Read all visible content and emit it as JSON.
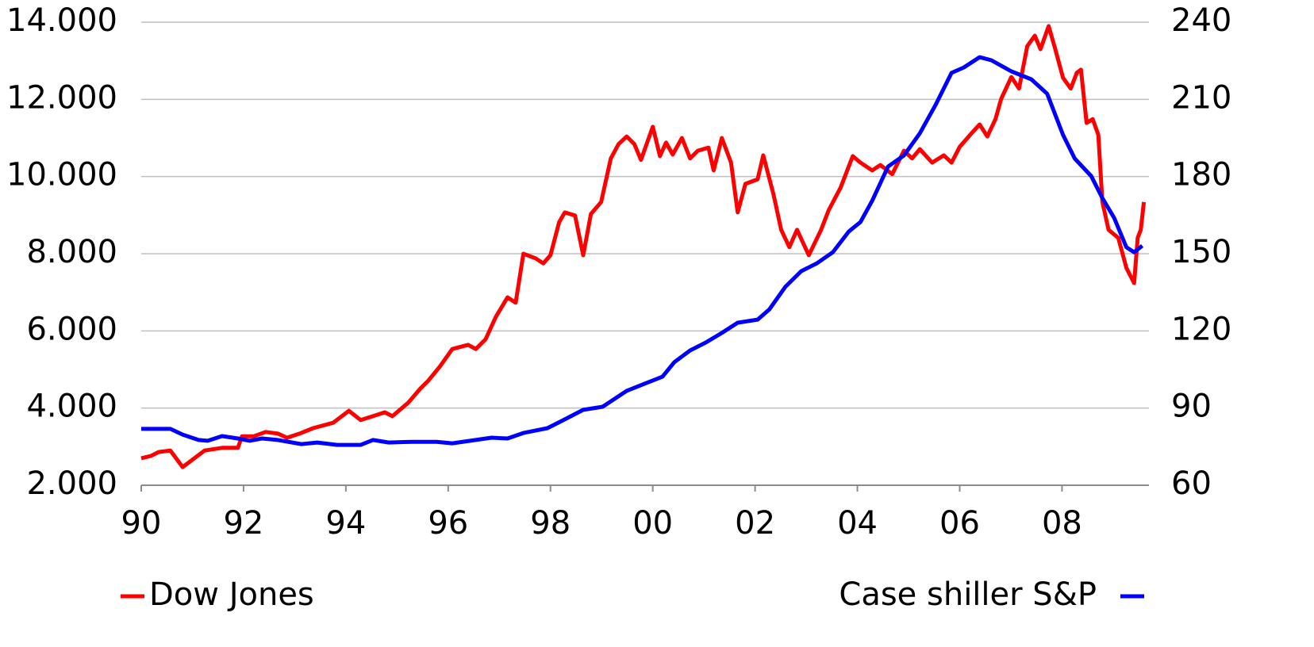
{
  "chart_data": {
    "type": "line",
    "xlim": [
      1990,
      2009.7
    ],
    "xticks": [
      {
        "value": 1990,
        "label": "90"
      },
      {
        "value": 1992,
        "label": "92"
      },
      {
        "value": 1994,
        "label": "94"
      },
      {
        "value": 1996,
        "label": "96"
      },
      {
        "value": 1998,
        "label": "98"
      },
      {
        "value": 2000,
        "label": "00"
      },
      {
        "value": 2002,
        "label": "02"
      },
      {
        "value": 2004,
        "label": "04"
      },
      {
        "value": 2006,
        "label": "06"
      },
      {
        "value": 2008,
        "label": "08"
      }
    ],
    "ylim": [
      2000,
      14000
    ],
    "yticks": [
      {
        "value": 2000,
        "label": "2.000"
      },
      {
        "value": 4000,
        "label": "4.000"
      },
      {
        "value": 6000,
        "label": "6.000"
      },
      {
        "value": 8000,
        "label": "8.000"
      },
      {
        "value": 10000,
        "label": "10.000"
      },
      {
        "value": 12000,
        "label": "12.000"
      },
      {
        "value": 14000,
        "label": "14.000"
      }
    ],
    "y2lim": [
      60,
      240
    ],
    "y2ticks": [
      60,
      90,
      120,
      150,
      180,
      210,
      240
    ],
    "grid": true,
    "legend": "bottom",
    "series": [
      {
        "name": "Dow Jones",
        "color": "#ff0000",
        "x": [
          1990.0,
          1990.19,
          1990.34,
          1990.57,
          1990.81,
          1990.96,
          1991.24,
          1991.58,
          1991.89,
          1991.97,
          1992.2,
          1992.43,
          1992.67,
          1992.85,
          1993.1,
          1993.36,
          1993.75,
          1994.06,
          1994.29,
          1994.53,
          1994.76,
          1994.91,
          1995.22,
          1995.46,
          1995.61,
          1995.84,
          1996.08,
          1996.39,
          1996.54,
          1996.73,
          1996.93,
          1997.16,
          1997.32,
          1997.47,
          1997.71,
          1997.86,
          1998.0,
          1998.17,
          1998.28,
          1998.48,
          1998.64,
          1998.79,
          1998.99,
          1999.18,
          1999.33,
          1999.49,
          1999.64,
          1999.77,
          2000.0,
          2000.14,
          2000.26,
          2000.39,
          2000.57,
          2000.73,
          2000.88,
          2001.09,
          2001.19,
          2001.35,
          2001.53,
          2001.66,
          2001.81,
          2002.05,
          2002.16,
          2002.36,
          2002.51,
          2002.67,
          2002.82,
          2003.05,
          2003.29,
          2003.44,
          2003.67,
          2003.91,
          2004.06,
          2004.29,
          2004.45,
          2004.68,
          2004.91,
          2005.07,
          2005.22,
          2005.46,
          2005.69,
          2005.84,
          2006.0,
          2006.23,
          2006.39,
          2006.54,
          2006.7,
          2006.81,
          2007.01,
          2007.16,
          2007.32,
          2007.47,
          2007.58,
          2007.74,
          2007.86,
          2008.02,
          2008.17,
          2008.29,
          2008.37,
          2008.48,
          2008.6,
          2008.71,
          2008.79,
          2008.91,
          2009.1,
          2009.26,
          2009.41,
          2009.48,
          2009.54,
          2009.6
        ],
        "values": [
          2700,
          2760,
          2860,
          2900,
          2470,
          2620,
          2900,
          2970,
          2970,
          3270,
          3270,
          3380,
          3340,
          3230,
          3340,
          3480,
          3620,
          3930,
          3690,
          3790,
          3890,
          3790,
          4140,
          4510,
          4710,
          5080,
          5530,
          5640,
          5530,
          5780,
          6360,
          6870,
          6730,
          8000,
          7880,
          7750,
          7960,
          8820,
          9070,
          8990,
          7960,
          9030,
          9340,
          10470,
          10840,
          11040,
          10840,
          10430,
          11290,
          10530,
          10880,
          10570,
          11000,
          10470,
          10670,
          10750,
          10160,
          11000,
          10360,
          9070,
          9810,
          9930,
          10550,
          9540,
          8620,
          8170,
          8620,
          7960,
          8620,
          9130,
          9710,
          10530,
          10360,
          10160,
          10300,
          10060,
          10670,
          10470,
          10710,
          10360,
          10550,
          10360,
          10770,
          11120,
          11350,
          11040,
          11490,
          12010,
          12580,
          12280,
          13380,
          13650,
          13300,
          13900,
          13340,
          12560,
          12280,
          12690,
          12770,
          11390,
          11490,
          11080,
          9340,
          8620,
          8410,
          7630,
          7240,
          8410,
          8620,
          9340
        ]
      },
      {
        "name": "Case shiller S&P",
        "color": "#0000ff",
        "axis": "y2",
        "x": [
          1990.0,
          1990.57,
          1990.81,
          1991.12,
          1991.3,
          1991.58,
          1991.89,
          1992.12,
          1992.36,
          1992.67,
          1993.13,
          1993.44,
          1993.83,
          1994.29,
          1994.53,
          1994.84,
          1995.3,
          1995.77,
          1996.08,
          1996.54,
          1996.85,
          1997.16,
          1997.47,
          1997.94,
          1998.25,
          1998.64,
          1999.02,
          1999.49,
          1999.88,
          2000.19,
          2000.42,
          2000.73,
          2001.04,
          2001.35,
          2001.66,
          2002.05,
          2002.28,
          2002.59,
          2002.9,
          2003.21,
          2003.52,
          2003.83,
          2004.06,
          2004.29,
          2004.6,
          2004.91,
          2005.22,
          2005.53,
          2005.84,
          2006.08,
          2006.39,
          2006.62,
          2007.01,
          2007.4,
          2007.71,
          2008.02,
          2008.25,
          2008.57,
          2008.79,
          2009.02,
          2009.26,
          2009.41,
          2009.57
        ],
        "values": [
          81.9,
          81.9,
          79.7,
          77.6,
          77.3,
          79.1,
          78.2,
          77.3,
          78.2,
          77.6,
          76.0,
          76.6,
          75.7,
          75.7,
          77.6,
          76.6,
          76.9,
          76.9,
          76.3,
          77.6,
          78.5,
          78.2,
          80.3,
          82.2,
          85.3,
          89.3,
          90.5,
          96.7,
          99.8,
          102.2,
          107.8,
          112.4,
          115.5,
          119.2,
          123.2,
          124.4,
          128.4,
          137.1,
          143.2,
          146.3,
          150.6,
          158.6,
          162.3,
          170.6,
          183.9,
          188.2,
          196.8,
          207.9,
          220.3,
          222.4,
          226.4,
          225.2,
          220.9,
          217.8,
          212.2,
          196.2,
          187.0,
          180.2,
          171.6,
          163.9,
          152.5,
          150.6,
          153.1
        ]
      }
    ]
  }
}
